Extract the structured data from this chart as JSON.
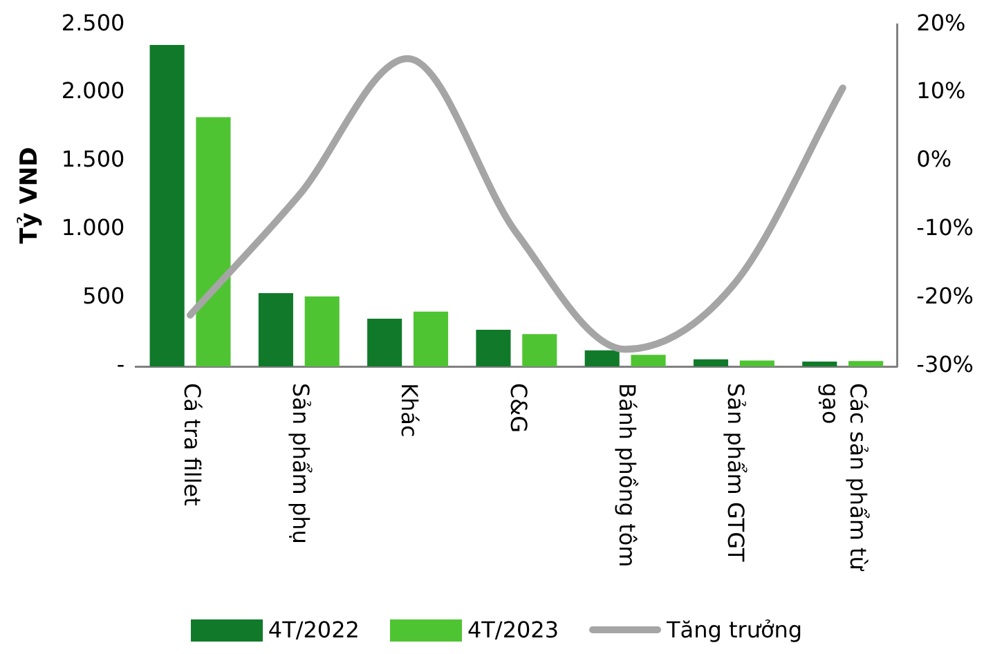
{
  "chart_data": {
    "type": "bar",
    "ylabel": "Tỷ VND",
    "categories": [
      "Cá tra fillet",
      "Sản phẩm phụ",
      "Khác",
      "C&G",
      "Bánh phồng tôm",
      "Sản phẩm GTGT",
      "Các sản phẩm từ gạo"
    ],
    "series": [
      {
        "name": "4T/2022",
        "color": "#117a2a",
        "values": [
          2349,
          536,
          349,
          268,
          117,
          52,
          35
        ]
      },
      {
        "name": "4T/2023",
        "color": "#4fc433",
        "values": [
          1822,
          511,
          401,
          236,
          85,
          43,
          39
        ]
      },
      {
        "name": "Tăng trưởng",
        "type": "line",
        "axis": "y2",
        "color": "#a5a5a5",
        "values": [
          -22.5,
          -5,
          15,
          -10.5,
          -27.5,
          -18,
          10.7
        ]
      }
    ],
    "ylim": [
      0,
      2500
    ],
    "yticks": [
      {
        "value": 0,
        "label": "-"
      },
      {
        "value": 500,
        "label": "500"
      },
      {
        "value": 1000,
        "label": "1.000"
      },
      {
        "value": 1500,
        "label": "1.500"
      },
      {
        "value": 2000,
        "label": "2.000"
      },
      {
        "value": 2500,
        "label": "2.500"
      }
    ],
    "y2lim": [
      -30,
      20
    ],
    "y2ticks": [
      {
        "value": -30,
        "label": "-30%"
      },
      {
        "value": -20,
        "label": "-20%"
      },
      {
        "value": -10,
        "label": "-10%"
      },
      {
        "value": 0,
        "label": "0%"
      },
      {
        "value": 10,
        "label": "10%"
      },
      {
        "value": 20,
        "label": "20%"
      }
    ],
    "grid": false,
    "legend": "bottom",
    "marker": "none",
    "line_style": "solid"
  }
}
